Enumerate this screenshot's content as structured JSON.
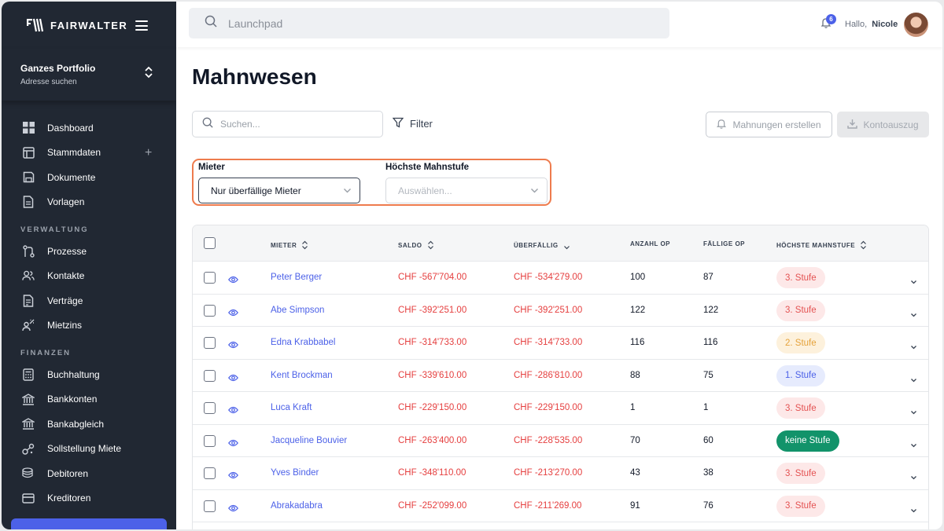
{
  "brand": {
    "name": "FAIRWALTER"
  },
  "portfolio": {
    "title": "Ganzes Portfolio",
    "subtitle": "Adresse suchen"
  },
  "nav": {
    "main": [
      {
        "label": "Dashboard",
        "icon": "dashboard-icon"
      },
      {
        "label": "Stammdaten",
        "icon": "layout-icon",
        "has_plus": true
      },
      {
        "label": "Dokumente",
        "icon": "save-icon"
      },
      {
        "label": "Vorlagen",
        "icon": "file-icon"
      }
    ],
    "section_verwaltung": "VERWALTUNG",
    "verwaltung": [
      {
        "label": "Prozesse",
        "icon": "process-icon"
      },
      {
        "label": "Kontakte",
        "icon": "users-icon"
      },
      {
        "label": "Verträge",
        "icon": "contract-icon"
      },
      {
        "label": "Mietzins",
        "icon": "rent-icon"
      }
    ],
    "section_finanzen": "FINANZEN",
    "finanzen": [
      {
        "label": "Buchhaltung",
        "icon": "calculator-icon"
      },
      {
        "label": "Bankkonten",
        "icon": "bank-icon"
      },
      {
        "label": "Bankabgleich",
        "icon": "bank-reconcile-icon"
      },
      {
        "label": "Sollstellung Miete",
        "icon": "target-icon"
      },
      {
        "label": "Debitoren",
        "icon": "coins-icon"
      },
      {
        "label": "Kreditoren",
        "icon": "credit-card-icon"
      }
    ]
  },
  "topbar": {
    "search_placeholder": "Launchpad",
    "notification_count": "6",
    "greeting": "Hallo,",
    "user_name": "Nicole"
  },
  "page": {
    "title": "Mahnwesen",
    "search_placeholder": "Suchen...",
    "filter_label": "Filter",
    "btn_mahnungen": "Mahnungen erstellen",
    "btn_kontoauszug": "Kontoauszug",
    "filter_mieter_label": "Mieter",
    "filter_mieter_value": "Nur überfällige Mieter",
    "filter_mahnstufe_label": "Höchste Mahnstufe",
    "filter_mahnstufe_placeholder": "Auswählen..."
  },
  "table": {
    "headers": {
      "mieter": "MIETER",
      "saldo": "SALDO",
      "ueberfaellig": "ÜBERFÄLLIG",
      "anzahl_op": "ANZAHL OP",
      "faellige_op": "FÄLLIGE OP",
      "mahnstufe": "HÖCHSTE MAHNSTUFE"
    },
    "rows": [
      {
        "mieter": "Peter Berger",
        "saldo": "CHF -567'704.00",
        "ueberfaellig": "CHF -534'279.00",
        "anzahl": "100",
        "faellig": "87",
        "stufe": "3. Stufe",
        "level": "3"
      },
      {
        "mieter": "Abe Simpson",
        "saldo": "CHF -392'251.00",
        "ueberfaellig": "CHF -392'251.00",
        "anzahl": "122",
        "faellig": "122",
        "stufe": "3. Stufe",
        "level": "3"
      },
      {
        "mieter": "Edna Krabbabel",
        "saldo": "CHF -314'733.00",
        "ueberfaellig": "CHF -314'733.00",
        "anzahl": "116",
        "faellig": "116",
        "stufe": "2. Stufe",
        "level": "2"
      },
      {
        "mieter": "Kent Brockman",
        "saldo": "CHF -339'610.00",
        "ueberfaellig": "CHF -286'810.00",
        "anzahl": "88",
        "faellig": "75",
        "stufe": "1. Stufe",
        "level": "1"
      },
      {
        "mieter": "Luca Kraft",
        "saldo": "CHF -229'150.00",
        "ueberfaellig": "CHF -229'150.00",
        "anzahl": "1",
        "faellig": "1",
        "stufe": "3. Stufe",
        "level": "3"
      },
      {
        "mieter": "Jacqueline Bouvier",
        "saldo": "CHF -263'400.00",
        "ueberfaellig": "CHF -228'535.00",
        "anzahl": "70",
        "faellig": "60",
        "stufe": "keine Stufe",
        "level": "0"
      },
      {
        "mieter": "Yves Binder",
        "saldo": "CHF -348'110.00",
        "ueberfaellig": "CHF -213'270.00",
        "anzahl": "43",
        "faellig": "38",
        "stufe": "3. Stufe",
        "level": "3"
      },
      {
        "mieter": "Abrakadabra",
        "saldo": "CHF -252'099.00",
        "ueberfaellig": "CHF -211'269.00",
        "anzahl": "91",
        "faellig": "76",
        "stufe": "3. Stufe",
        "level": "3"
      }
    ]
  },
  "colors": {
    "sidebar_bg": "#212833",
    "accent": "#4c61e8",
    "negative": "#e53e3e",
    "highlight": "#ee7b4d",
    "stufe3_bg": "#fde8e8",
    "stufe3_fg": "#e45252",
    "stufe2_bg": "#fdf1dc",
    "stufe2_fg": "#e5a23a",
    "stufe1_bg": "#e6ebfd",
    "stufe1_fg": "#4c61e8",
    "stufe0_bg": "#12936a",
    "stufe0_fg": "#ffffff"
  }
}
